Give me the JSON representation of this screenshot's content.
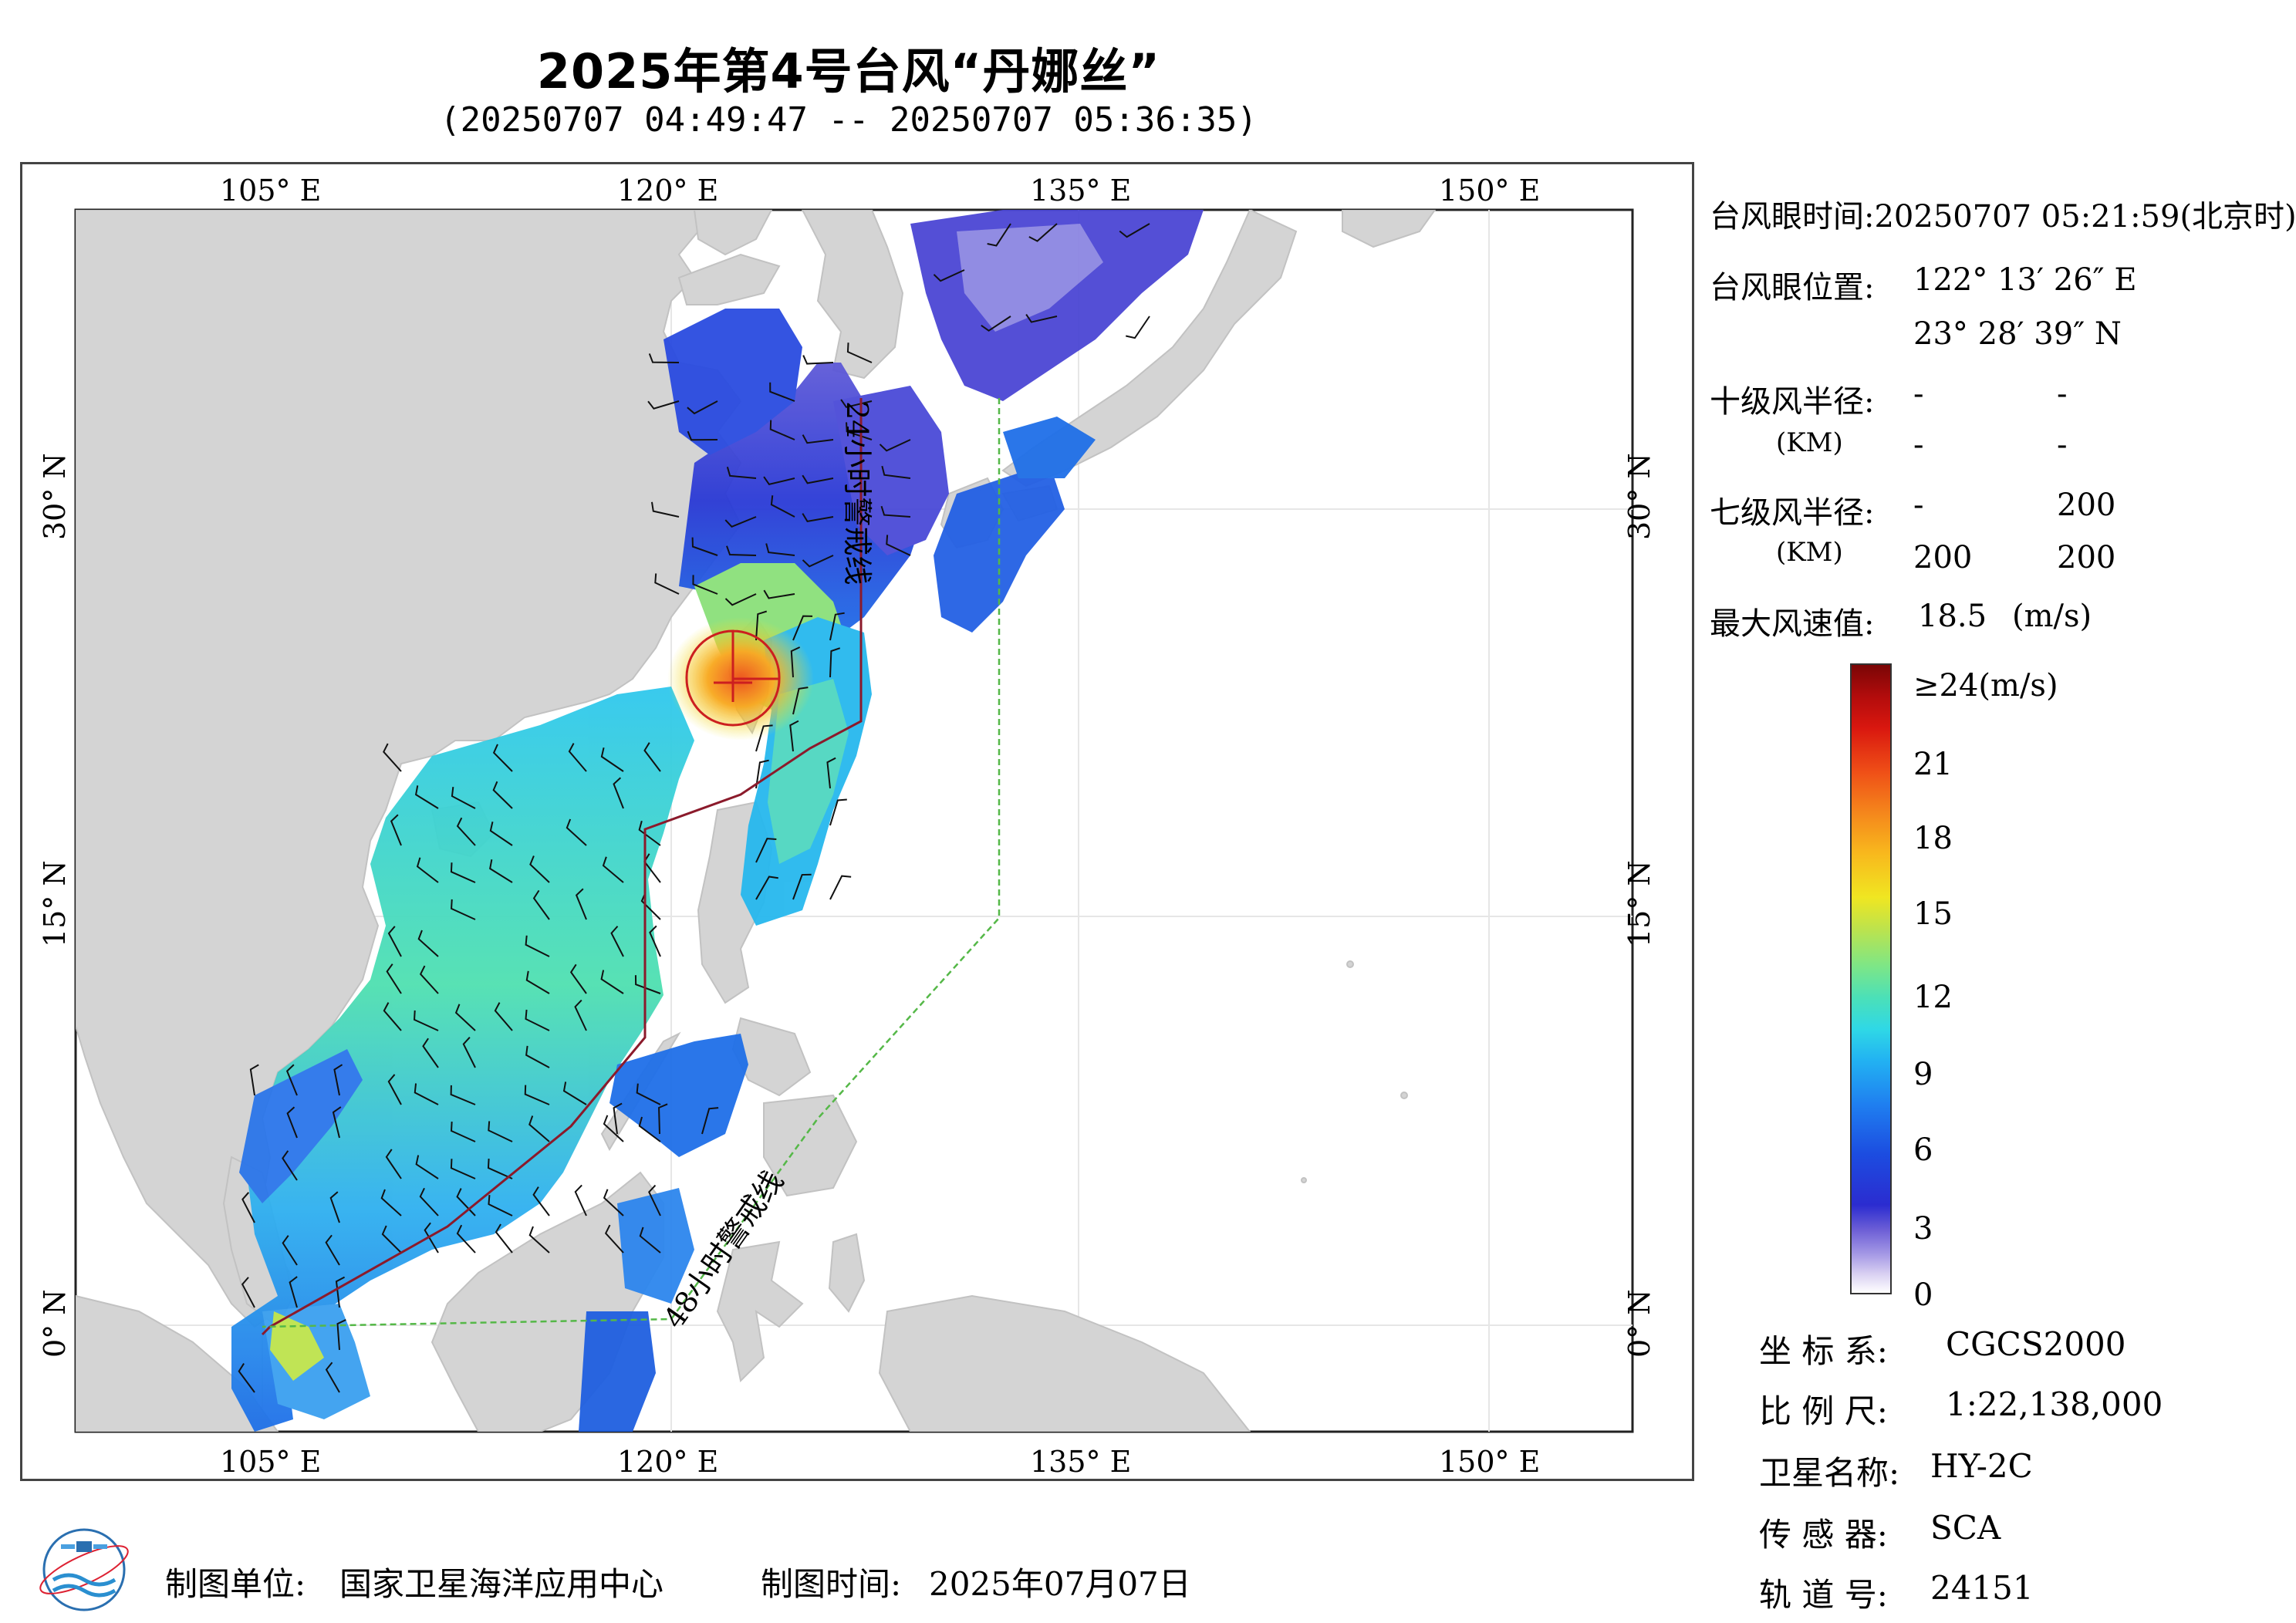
{
  "title": "2025年第4号台风“丹娜丝”",
  "subtitle": "(20250707 04:49:47 -- 20250707 05:36:35)",
  "map": {
    "lon_labels": [
      "105° E",
      "120° E",
      "135° E",
      "150° E"
    ],
    "lat_labels": [
      "30° N",
      "15° N",
      "0° N"
    ],
    "warning_24h_label": "24小时警戒线",
    "warning_48h_label": "48小时警戒线",
    "colors": {
      "land": "#d4d4d4",
      "ocean": "#ffffff",
      "warning_24h": "#8b1a2b",
      "warning_48h": "#55b848"
    },
    "typhoon_center": {
      "lon": 122.22,
      "lat": 23.48
    }
  },
  "info": {
    "eye_time_label": "台风眼时间:",
    "eye_time_value": "20250707 05:21:59(北京时)",
    "eye_pos_label": "台风眼位置:",
    "eye_lon": "122° 13′ 26″ E",
    "eye_lat": "23° 28′ 39″ N",
    "r10_label": "十级风半径:",
    "r10_unit": "(KM)",
    "r10_values": [
      "-",
      "-",
      "-",
      "-"
    ],
    "r7_label": "七级风半径:",
    "r7_unit": "(KM)",
    "r7_values": [
      "-",
      "200",
      "200",
      "200"
    ],
    "max_wind_label": "最大风速值:",
    "max_wind_value": "18.5",
    "max_wind_unit": "(m/s)"
  },
  "legend": {
    "top_label": "≥24(m/s)",
    "labels": [
      "21",
      "18",
      "15",
      "12",
      "9",
      "6",
      "3",
      "0"
    ],
    "min": 0,
    "max": 24
  },
  "meta": {
    "crs_label": "坐 标 系:",
    "crs_value": "CGCS2000",
    "scale_label": "比 例 尺:",
    "scale_value": "1:22,138,000",
    "satellite_label": "卫星名称:",
    "satellite_value": "HY-2C",
    "sensor_label": "传 感 器:",
    "sensor_value": "SCA",
    "orbit_label": "轨 道 号:",
    "orbit_value": "24151"
  },
  "footer": {
    "org_label": "制图单位:",
    "org_value": "国家卫星海洋应用中心",
    "date_label": "制图时间:",
    "date_value": "2025年07月07日"
  }
}
